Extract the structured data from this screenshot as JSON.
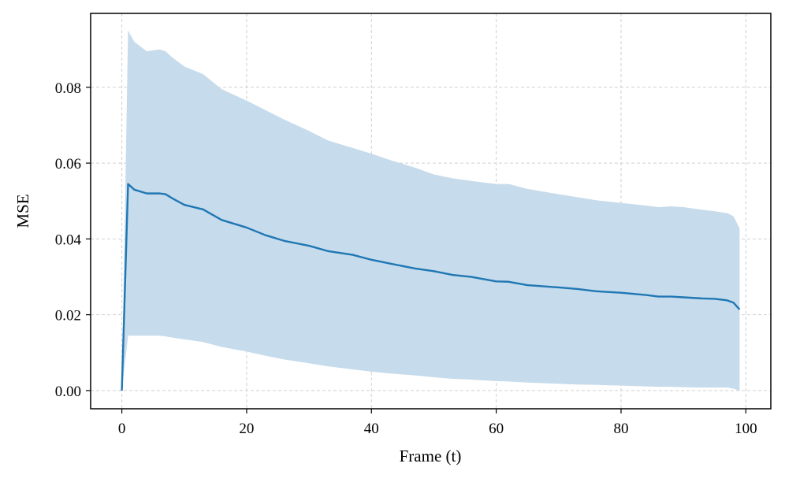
{
  "chart_data": {
    "type": "line",
    "xlabel": "Frame (t)",
    "ylabel": "MSE",
    "xlim": [
      -5,
      104
    ],
    "ylim": [
      -0.0048,
      0.0995
    ],
    "xticks": [
      0,
      20,
      40,
      60,
      80,
      100
    ],
    "yticks": [
      0.0,
      0.02,
      0.04,
      0.06,
      0.08
    ],
    "xtick_labels": [
      "0",
      "20",
      "40",
      "60",
      "80",
      "100"
    ],
    "ytick_labels": [
      "0.00",
      "0.02",
      "0.04",
      "0.06",
      "0.08"
    ],
    "grid": true,
    "colors": {
      "line": "#1f77b4",
      "band": "#c6dbeb"
    },
    "series": [
      {
        "x": [
          0,
          1,
          2,
          4,
          6,
          7,
          8,
          10,
          13,
          16,
          20,
          23,
          26,
          30,
          33,
          37,
          40,
          43,
          47,
          50,
          53,
          56,
          60,
          62,
          65,
          70,
          73,
          76,
          80,
          84,
          86,
          88,
          90,
          93,
          95,
          97,
          98,
          99
        ],
        "y": [
          0.0,
          0.0545,
          0.053,
          0.052,
          0.052,
          0.0518,
          0.0508,
          0.049,
          0.0478,
          0.045,
          0.043,
          0.041,
          0.0395,
          0.0382,
          0.0368,
          0.0358,
          0.0345,
          0.0335,
          0.0322,
          0.0315,
          0.0305,
          0.03,
          0.0288,
          0.0287,
          0.0278,
          0.0272,
          0.0268,
          0.0262,
          0.0258,
          0.0252,
          0.0248,
          0.0248,
          0.0246,
          0.0243,
          0.0242,
          0.0238,
          0.0232,
          0.0214
        ],
        "upper": [
          0.0,
          0.095,
          0.092,
          0.0895,
          0.09,
          0.0895,
          0.088,
          0.0855,
          0.0835,
          0.0795,
          0.0765,
          0.074,
          0.0715,
          0.0685,
          0.066,
          0.064,
          0.0625,
          0.0608,
          0.0588,
          0.057,
          0.056,
          0.0553,
          0.0545,
          0.0545,
          0.0532,
          0.0518,
          0.051,
          0.0502,
          0.0495,
          0.0488,
          0.0484,
          0.0486,
          0.0484,
          0.0477,
          0.0473,
          0.0468,
          0.046,
          0.0428
        ],
        "lower": [
          0.0,
          0.0145,
          0.0145,
          0.0145,
          0.0145,
          0.0143,
          0.014,
          0.0135,
          0.0128,
          0.0115,
          0.0103,
          0.0092,
          0.0082,
          0.0072,
          0.0064,
          0.0056,
          0.005,
          0.0045,
          0.004,
          0.0035,
          0.0031,
          0.0029,
          0.0025,
          0.0024,
          0.0021,
          0.0018,
          0.0016,
          0.0015,
          0.0013,
          0.0011,
          0.001,
          0.001,
          0.0009,
          0.0008,
          0.0008,
          0.0008,
          0.0005,
          0.0
        ]
      }
    ]
  }
}
